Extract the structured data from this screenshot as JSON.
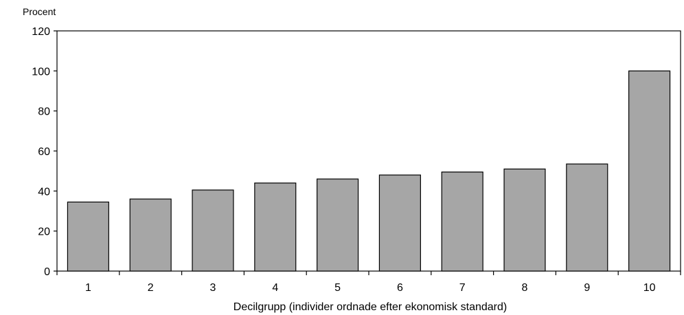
{
  "chart_data": {
    "type": "bar",
    "title": "",
    "ylabel": "Procent",
    "xlabel": "Decilgrupp (individer ordnade efter ekonomisk standard)",
    "categories": [
      "1",
      "2",
      "3",
      "4",
      "5",
      "6",
      "7",
      "8",
      "9",
      "10"
    ],
    "values": [
      34.5,
      36,
      40.5,
      44,
      46,
      48,
      49.5,
      51,
      53.5,
      100
    ],
    "ylim": [
      0,
      120
    ],
    "yticks": [
      0,
      20,
      40,
      60,
      80,
      100,
      120
    ],
    "grid": false,
    "legend": "none",
    "colors": {
      "bar_fill": "#a6a6a6",
      "bar_stroke": "#000000",
      "axis": "#000000"
    }
  }
}
